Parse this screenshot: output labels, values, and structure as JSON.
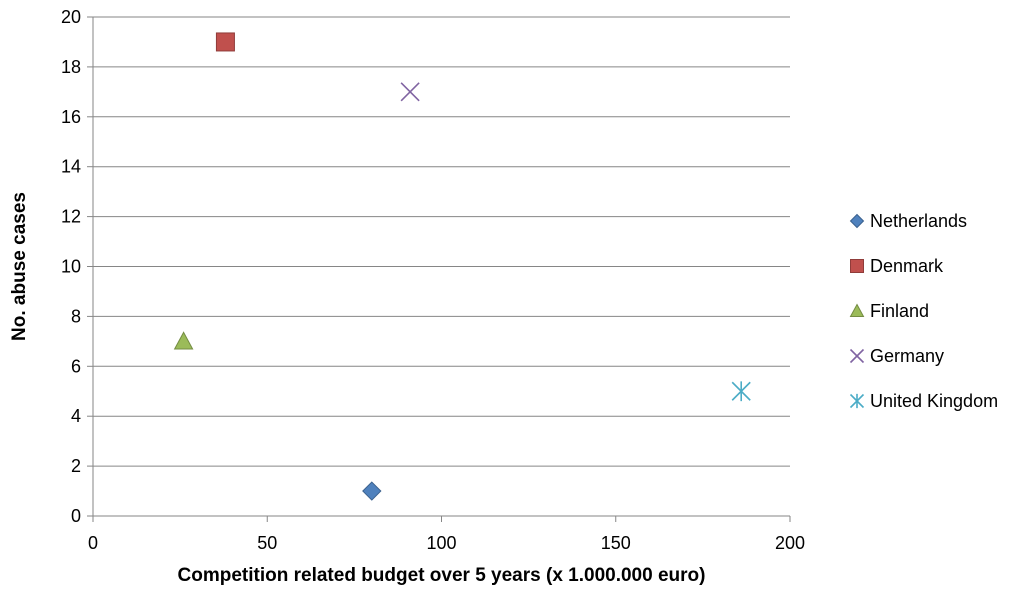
{
  "chart_data": {
    "type": "scatter",
    "xlabel": "Competition related budget over 5 years (x 1.000.000 euro)",
    "ylabel": "No. abuse cases",
    "xlim": [
      0,
      200
    ],
    "ylim": [
      0,
      20
    ],
    "xticks": [
      0,
      50,
      100,
      150,
      200
    ],
    "yticks": [
      0,
      2,
      4,
      6,
      8,
      10,
      12,
      14,
      16,
      18,
      20
    ],
    "grid": "horizontal",
    "legend_position": "right",
    "series": [
      {
        "name": "Netherlands",
        "marker": "diamond",
        "color": "#4F81BD",
        "points": [
          {
            "x": 80,
            "y": 1
          }
        ]
      },
      {
        "name": "Denmark",
        "marker": "square",
        "color": "#C0504D",
        "points": [
          {
            "x": 38,
            "y": 19
          }
        ]
      },
      {
        "name": "Finland",
        "marker": "triangle",
        "color": "#9BBB59",
        "points": [
          {
            "x": 26,
            "y": 7
          }
        ]
      },
      {
        "name": "Germany",
        "marker": "x",
        "color": "#8064A2",
        "points": [
          {
            "x": 91,
            "y": 17
          }
        ]
      },
      {
        "name": "United Kingdom",
        "marker": "star",
        "color": "#4BACC6",
        "points": [
          {
            "x": 186,
            "y": 5
          }
        ]
      }
    ]
  }
}
